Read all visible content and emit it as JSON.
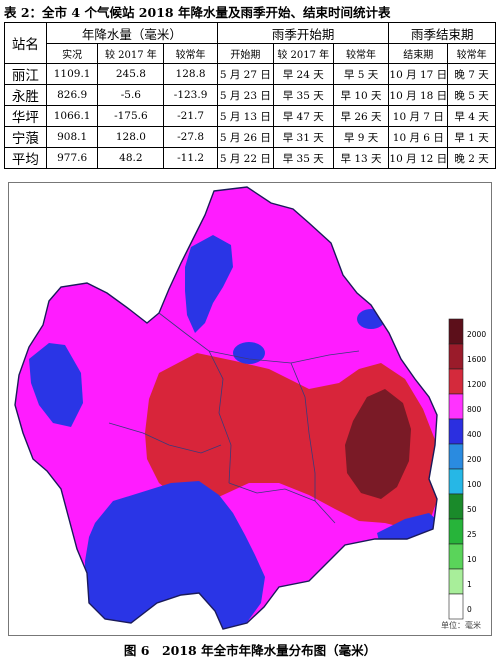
{
  "table": {
    "caption": "表 2：全市 4 个气候站 2018 年降水量及雨季开始、结束时间统计表",
    "headers": {
      "station": "站名",
      "precip_group": "年降水量（毫米）",
      "start_group": "雨季开始期",
      "end_group": "雨季结束期",
      "sub": [
        "实况",
        "较 2017 年",
        "较常年",
        "开始期",
        "较 2017 年",
        "较常年",
        "结束期",
        "较常年"
      ]
    },
    "rows": [
      {
        "station": "丽江",
        "cells": [
          "1109.1",
          "245.8",
          "128.8",
          "5 月 27 日",
          "早 24 天",
          "早 5 天",
          "10 月 17 日",
          "晚 7 天"
        ]
      },
      {
        "station": "永胜",
        "cells": [
          "826.9",
          "-5.6",
          "-123.9",
          "5 月 23 日",
          "早 35 天",
          "早 10 天",
          "10 月 18 日",
          "晚 5 天"
        ]
      },
      {
        "station": "华坪",
        "cells": [
          "1066.1",
          "-175.6",
          "-21.7",
          "5 月 13 日",
          "早 47 天",
          "早 26 天",
          "10 月 7 日",
          "早 4 天"
        ]
      },
      {
        "station": "宁蒗",
        "cells": [
          "908.1",
          "128.0",
          "-27.8",
          "5 月 26 日",
          "早 31 天",
          "早 9 天",
          "10 月 6 日",
          "早 1 天"
        ]
      },
      {
        "station": "平均",
        "cells": [
          "977.6",
          "48.2",
          "-11.2",
          "5 月 22 日",
          "早 35 天",
          "早 13 天",
          "10 月 12 日",
          "晚 2 天"
        ]
      }
    ]
  },
  "map": {
    "legend_labels": [
      "2000",
      "1600",
      "1200",
      "800",
      "400",
      "200",
      "100",
      "50",
      "25",
      "10",
      "1",
      "0"
    ],
    "legend_colors": [
      "#5c0f1a",
      "#9a1b2a",
      "#d42a3c",
      "#ff33ff",
      "#2b2fe0",
      "#2a8be0",
      "#26b7e6",
      "#1a8a2a",
      "#27b43a",
      "#5ad45a",
      "#a8ee9a",
      "#ffffff"
    ],
    "region_colors": {
      "base": "#ff1cff",
      "red": "#d8253a",
      "darkred": "#7a1a26",
      "blue": "#2a35e6"
    },
    "unit_label": "单位：毫米"
  },
  "figure_caption": "图 6　2018 年全市年降水量分布图（毫米）"
}
